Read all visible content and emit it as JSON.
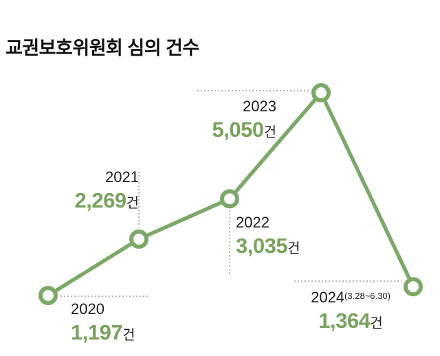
{
  "title": "교권보호위원회 심의 건수",
  "chart_data": {
    "type": "line",
    "title": "교권보호위원회 심의 건수",
    "categories": [
      "2020",
      "2021",
      "2022",
      "2023",
      "2024(3.28~6.30)"
    ],
    "values": [
      1197,
      2269,
      3035,
      5050,
      1364
    ],
    "unit": "건",
    "ylim": [
      0,
      5500
    ],
    "grid": false,
    "legend": "none",
    "line_color": "#7ca967",
    "marker_fill": "#ffffff",
    "marker_stroke": "#7ca967",
    "leader_line_color": "#9a9a9a"
  },
  "annotations": [
    {
      "year": "2020",
      "value": "1,197",
      "unit": "건"
    },
    {
      "year": "2021",
      "value": "2,269",
      "unit": "건"
    },
    {
      "year": "2022",
      "value": "3,035",
      "unit": "건"
    },
    {
      "year": "2023",
      "value": "5,050",
      "unit": "건"
    },
    {
      "year": "2024",
      "note": "(3.28~6.30)",
      "value": "1,364",
      "unit": "건"
    }
  ],
  "colors": {
    "accent": "#7ca967",
    "value_text": "#78a35c",
    "year_text": "#1c1c1c",
    "leader": "#9a9a9a",
    "background": "#ffffff"
  }
}
